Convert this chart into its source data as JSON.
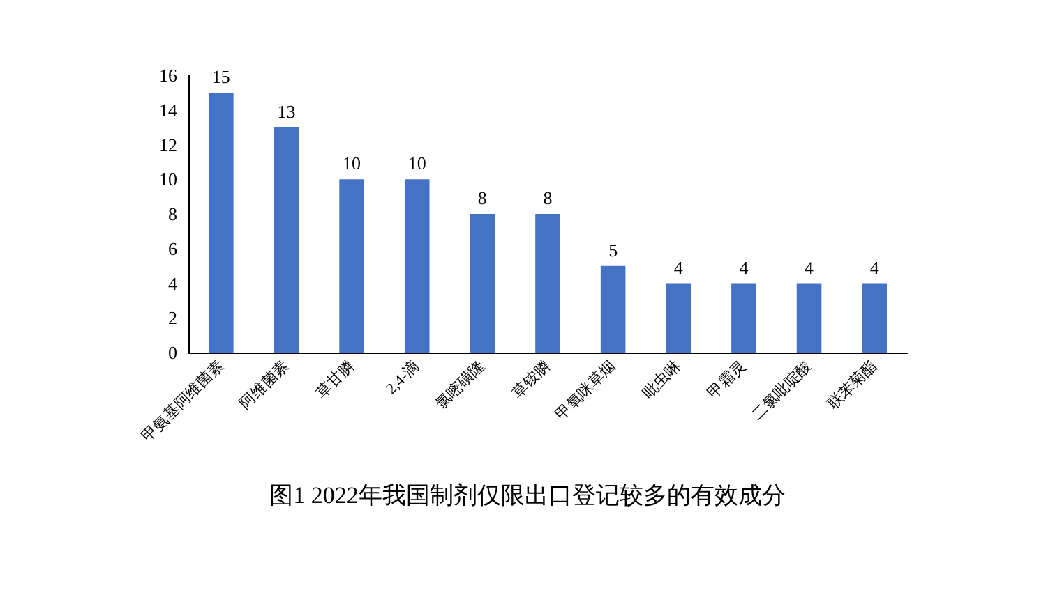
{
  "chart_data": {
    "type": "bar",
    "title": "图1 2022年我国制剂仅限出口登记较多的有效成分",
    "categories": [
      "甲氨基阿维菌素",
      "阿维菌素",
      "草甘膦",
      "2,4-滴",
      "氯嘧磺隆",
      "草铵膦",
      "甲氧咪草烟",
      "吡虫啉",
      "甲霜灵",
      "二氯吡啶酸",
      "联苯菊酯"
    ],
    "values": [
      15,
      13,
      10,
      10,
      8,
      8,
      5,
      4,
      4,
      4,
      4
    ],
    "color": "#4472c4",
    "ylim": [
      0,
      16
    ],
    "yticks": [
      0,
      2,
      4,
      6,
      8,
      10,
      12,
      14,
      16
    ],
    "grid": false,
    "data_labels": true
  }
}
